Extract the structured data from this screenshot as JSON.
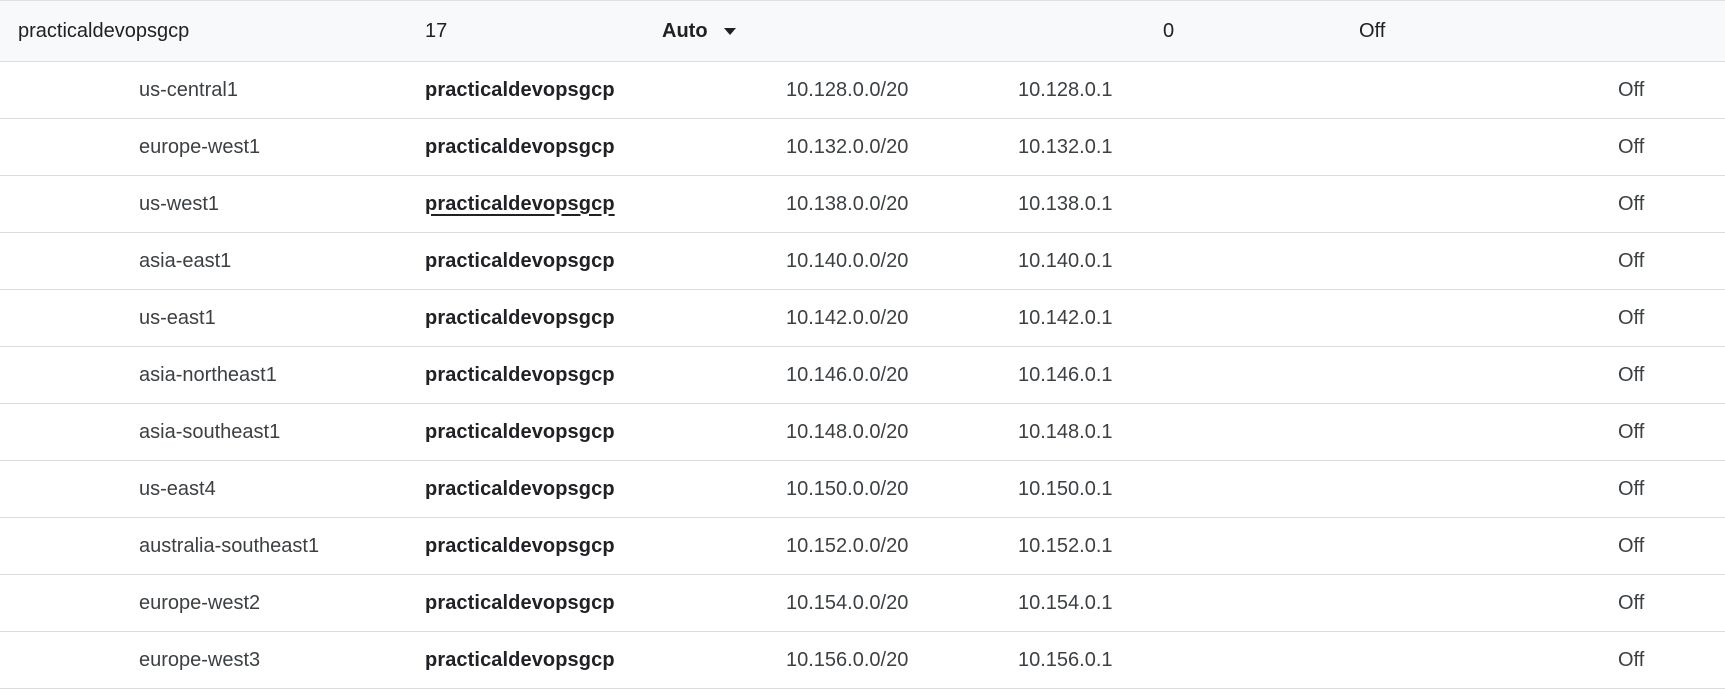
{
  "network": {
    "name": "practicaldevopsgcp",
    "subnet_count": "17",
    "mode": "Auto",
    "firewall_rules": "0",
    "status": "Off"
  },
  "subnets": [
    {
      "region": "us-central1",
      "network": "practicaldevopsgcp",
      "ip_range": "10.128.0.0/20",
      "gateway": "10.128.0.1",
      "private_access": "Off"
    },
    {
      "region": "europe-west1",
      "network": "practicaldevopsgcp",
      "ip_range": "10.132.0.0/20",
      "gateway": "10.132.0.1",
      "private_access": "Off"
    },
    {
      "region": "us-west1",
      "network": "practicaldevopsgcp",
      "ip_range": "10.138.0.0/20",
      "gateway": "10.138.0.1",
      "private_access": "Off"
    },
    {
      "region": "asia-east1",
      "network": "practicaldevopsgcp",
      "ip_range": "10.140.0.0/20",
      "gateway": "10.140.0.1",
      "private_access": "Off"
    },
    {
      "region": "us-east1",
      "network": "practicaldevopsgcp",
      "ip_range": "10.142.0.0/20",
      "gateway": "10.142.0.1",
      "private_access": "Off"
    },
    {
      "region": "asia-northeast1",
      "network": "practicaldevopsgcp",
      "ip_range": "10.146.0.0/20",
      "gateway": "10.146.0.1",
      "private_access": "Off"
    },
    {
      "region": "asia-southeast1",
      "network": "practicaldevopsgcp",
      "ip_range": "10.148.0.0/20",
      "gateway": "10.148.0.1",
      "private_access": "Off"
    },
    {
      "region": "us-east4",
      "network": "practicaldevopsgcp",
      "ip_range": "10.150.0.0/20",
      "gateway": "10.150.0.1",
      "private_access": "Off"
    },
    {
      "region": "australia-southeast1",
      "network": "practicaldevopsgcp",
      "ip_range": "10.152.0.0/20",
      "gateway": "10.152.0.1",
      "private_access": "Off"
    },
    {
      "region": "europe-west2",
      "network": "practicaldevopsgcp",
      "ip_range": "10.154.0.0/20",
      "gateway": "10.154.0.1",
      "private_access": "Off"
    },
    {
      "region": "europe-west3",
      "network": "practicaldevopsgcp",
      "ip_range": "10.156.0.0/20",
      "gateway": "10.156.0.1",
      "private_access": "Off"
    }
  ]
}
